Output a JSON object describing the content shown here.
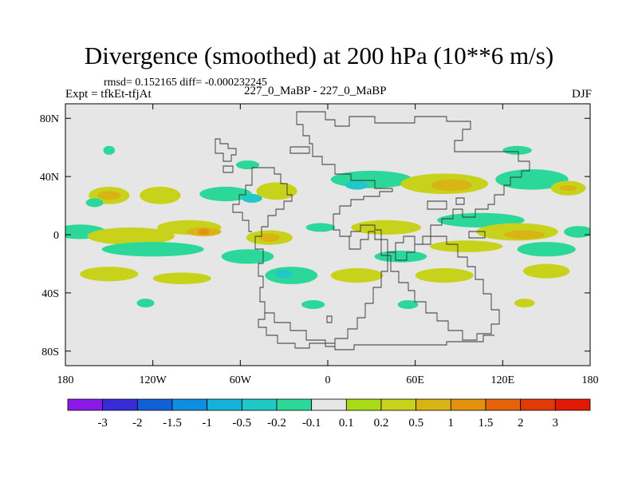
{
  "chart_data": {
    "type": "contour-map",
    "title": "Divergence (smoothed) at 200 hPa (10**6 m/s)",
    "stats": "rmsd= 0.152165 diff= -0.000232245",
    "experiment": "Expt = tfkEt-tfjAt",
    "comparison": "227_0_MaBP - 227_0_MaBP",
    "season": "DJF",
    "x_ticks": [
      "180",
      "120W",
      "60W",
      "0",
      "60E",
      "120E",
      "180"
    ],
    "y_ticks": [
      "80N",
      "40N",
      "0",
      "40S",
      "80S"
    ],
    "x_range": [
      -180,
      180
    ],
    "y_range": [
      -90,
      90
    ],
    "colorbar": {
      "levels": [
        "-3",
        "-2",
        "-1.5",
        "-1",
        "-0.5",
        "-0.2",
        "-0.1",
        "0.1",
        "0.2",
        "0.5",
        "1",
        "1.5",
        "2",
        "3"
      ],
      "colors": [
        "#8b1ae6",
        "#3a2bd9",
        "#1260d6",
        "#0f8fe0",
        "#15b3dc",
        "#20c9c6",
        "#2bd89a",
        "#e6e6e6",
        "#a9dc18",
        "#c8d21a",
        "#d8b414",
        "#e2920f",
        "#e6630b",
        "#df3a08",
        "#e01a05"
      ]
    },
    "blobs": [
      {
        "lon": -150,
        "lat": 27,
        "rx": 14,
        "ry": 6,
        "value": 0.2
      },
      {
        "lon": -150,
        "lat": 27,
        "rx": 8,
        "ry": 3,
        "value": 0.5
      },
      {
        "lon": -115,
        "lat": 27,
        "rx": 14,
        "ry": 6,
        "value": 0.2
      },
      {
        "lon": -160,
        "lat": 22,
        "rx": 6,
        "ry": 3,
        "value": -0.2
      },
      {
        "lon": -150,
        "lat": 58,
        "rx": 4,
        "ry": 3,
        "value": -0.2
      },
      {
        "lon": -70,
        "lat": 28,
        "rx": 18,
        "ry": 5,
        "value": -0.2
      },
      {
        "lon": -52,
        "lat": 25,
        "rx": 7,
        "ry": 3,
        "value": -0.5
      },
      {
        "lon": -35,
        "lat": 30,
        "rx": 14,
        "ry": 6,
        "value": 0.2
      },
      {
        "lon": 30,
        "lat": 38,
        "rx": 28,
        "ry": 6,
        "value": -0.2
      },
      {
        "lon": 20,
        "lat": 34,
        "rx": 8,
        "ry": 3,
        "value": -0.5
      },
      {
        "lon": 80,
        "lat": 35,
        "rx": 30,
        "ry": 7,
        "value": 0.2
      },
      {
        "lon": 85,
        "lat": 34,
        "rx": 14,
        "ry": 4,
        "value": 0.5
      },
      {
        "lon": 140,
        "lat": 38,
        "rx": 25,
        "ry": 7,
        "value": -0.2
      },
      {
        "lon": 165,
        "lat": 32,
        "rx": 12,
        "ry": 5,
        "value": 0.2
      },
      {
        "lon": 165,
        "lat": 32,
        "rx": 6,
        "ry": 2,
        "value": 0.5
      },
      {
        "lon": -170,
        "lat": 2,
        "rx": 18,
        "ry": 5,
        "value": -0.2
      },
      {
        "lon": -135,
        "lat": -1,
        "rx": 30,
        "ry": 6,
        "value": 0.2
      },
      {
        "lon": -95,
        "lat": 5,
        "rx": 22,
        "ry": 5,
        "value": 0.2
      },
      {
        "lon": -85,
        "lat": 2,
        "rx": 12,
        "ry": 3,
        "value": 0.5
      },
      {
        "lon": -85,
        "lat": 2,
        "rx": 4,
        "ry": 2,
        "value": 1
      },
      {
        "lon": -40,
        "lat": -2,
        "rx": 16,
        "ry": 5,
        "value": 0.2
      },
      {
        "lon": -40,
        "lat": -2,
        "rx": 7,
        "ry": 3,
        "value": 0.5
      },
      {
        "lon": -5,
        "lat": 5,
        "rx": 10,
        "ry": 3,
        "value": -0.2
      },
      {
        "lon": 40,
        "lat": 5,
        "rx": 24,
        "ry": 5,
        "value": 0.2
      },
      {
        "lon": 105,
        "lat": 10,
        "rx": 30,
        "ry": 5,
        "value": -0.2
      },
      {
        "lon": 130,
        "lat": 2,
        "rx": 28,
        "ry": 6,
        "value": 0.2
      },
      {
        "lon": 135,
        "lat": 0,
        "rx": 14,
        "ry": 3,
        "value": 0.5
      },
      {
        "lon": 172,
        "lat": 2,
        "rx": 10,
        "ry": 4,
        "value": -0.2
      },
      {
        "lon": -120,
        "lat": -10,
        "rx": 35,
        "ry": 5,
        "value": -0.2
      },
      {
        "lon": -55,
        "lat": -15,
        "rx": 18,
        "ry": 5,
        "value": -0.2
      },
      {
        "lon": 50,
        "lat": -15,
        "rx": 18,
        "ry": 4,
        "value": -0.2
      },
      {
        "lon": 95,
        "lat": -8,
        "rx": 25,
        "ry": 4,
        "value": 0.2
      },
      {
        "lon": 150,
        "lat": -10,
        "rx": 20,
        "ry": 5,
        "value": -0.2
      },
      {
        "lon": -150,
        "lat": -27,
        "rx": 20,
        "ry": 5,
        "value": 0.2
      },
      {
        "lon": -100,
        "lat": -30,
        "rx": 20,
        "ry": 4,
        "value": 0.2
      },
      {
        "lon": -25,
        "lat": -28,
        "rx": 18,
        "ry": 6,
        "value": -0.2
      },
      {
        "lon": -30,
        "lat": -27,
        "rx": 6,
        "ry": 3,
        "value": -0.5
      },
      {
        "lon": 20,
        "lat": -28,
        "rx": 18,
        "ry": 5,
        "value": 0.2
      },
      {
        "lon": 80,
        "lat": -28,
        "rx": 20,
        "ry": 5,
        "value": 0.2
      },
      {
        "lon": 150,
        "lat": -25,
        "rx": 16,
        "ry": 5,
        "value": 0.2
      },
      {
        "lon": -10,
        "lat": -48,
        "rx": 8,
        "ry": 3,
        "value": -0.2
      },
      {
        "lon": 55,
        "lat": -48,
        "rx": 7,
        "ry": 3,
        "value": -0.2
      },
      {
        "lon": 135,
        "lat": -47,
        "rx": 7,
        "ry": 3,
        "value": 0.2
      },
      {
        "lon": -125,
        "lat": -47,
        "rx": 6,
        "ry": 3,
        "value": -0.2
      },
      {
        "lon": 130,
        "lat": 58,
        "rx": 10,
        "ry": 3,
        "value": -0.2
      },
      {
        "lon": -55,
        "lat": 48,
        "rx": 8,
        "ry": 3,
        "value": -0.2
      }
    ]
  }
}
